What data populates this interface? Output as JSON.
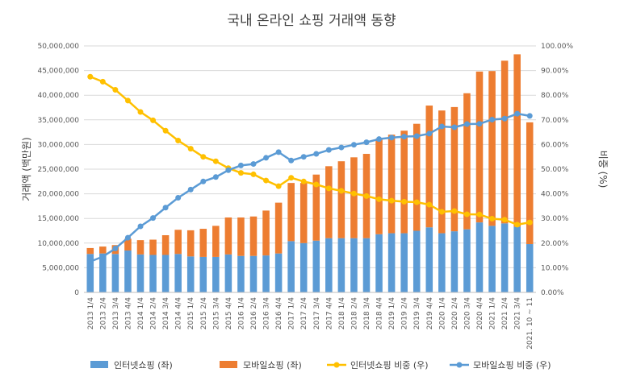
{
  "chart_data": {
    "type": "bar",
    "title": "국내 온라인 쇼핑 거래액 동향",
    "ylabel": "거래액 (백만원)",
    "y2label": "비중 (%)",
    "ylim": [
      0,
      50000000
    ],
    "y2lim": [
      0,
      100
    ],
    "stacked": true,
    "grid": true,
    "legend_position": "bottom",
    "categories": [
      "2013 1/4",
      "2013 2/4",
      "2013 3/4",
      "2013 4/4",
      "2014 1/4",
      "2014 2/4",
      "2014 3/4",
      "2014 4/4",
      "2015 1/4",
      "2015 2/4",
      "2015 3/4",
      "2015 4/4",
      "2016 1/4",
      "2016 2/4",
      "2016 3/4",
      "2016 4/4",
      "2017 1/4",
      "2017 2/4",
      "2017 3/4",
      "2017 4/4",
      "2018 1/4",
      "2018 2/4",
      "2018 3/4",
      "2018 4/4",
      "2019 1/4",
      "2019 2/4",
      "2019 3/4",
      "2019 4/4",
      "2020 1/4",
      "2020 2/4",
      "2020 3/4",
      "2020 4/4",
      "2021 1/4",
      "2021 2/4",
      "2021 3/4",
      "2021. 10 ~ 11"
    ],
    "y_ticks": [
      "0",
      "5,000,000",
      "10,000,000",
      "15,000,000",
      "20,000,000",
      "25,000,000",
      "30,000,000",
      "35,000,000",
      "40,000,000",
      "45,000,000",
      "50,000,000"
    ],
    "y2_ticks": [
      "0.00%",
      "10.00%",
      "20.00%",
      "30.00%",
      "40.00%",
      "50.00%",
      "60.00%",
      "70.00%",
      "80.00%",
      "90.00%",
      "100.00%"
    ],
    "series": [
      {
        "name": "인터넷쇼핑 (좌)",
        "kind": "bar",
        "axis": "left",
        "color": "#5B9BD5",
        "values": [
          7800000,
          7900000,
          7800000,
          8500000,
          7700000,
          7600000,
          7600000,
          7800000,
          7300000,
          7200000,
          7200000,
          7700000,
          7400000,
          7400000,
          7500000,
          7900000,
          10400000,
          10000000,
          10500000,
          11000000,
          11000000,
          11000000,
          11000000,
          11800000,
          12000000,
          12000000,
          12500000,
          13200000,
          12000000,
          12400000,
          12800000,
          14200000,
          13500000,
          14000000,
          13300000,
          9800000
        ]
      },
      {
        "name": "모바일쇼핑 (좌)",
        "kind": "bar",
        "axis": "left",
        "color": "#ED7D31",
        "values": [
          1200000,
          1400000,
          1800000,
          2400000,
          2900000,
          3100000,
          4000000,
          4900000,
          5300000,
          5700000,
          6300000,
          7500000,
          7800000,
          8000000,
          9100000,
          10300000,
          11800000,
          12200000,
          13400000,
          14600000,
          15600000,
          16400000,
          17100000,
          19400000,
          20000000,
          20800000,
          21700000,
          24700000,
          24900000,
          25200000,
          27600000,
          30600000,
          31400000,
          33000000,
          35000000,
          24700000
        ]
      },
      {
        "name": "인터넷쇼핑 비중 (우)",
        "kind": "line",
        "axis": "right",
        "color": "#FFC000",
        "values": [
          87.5,
          85.5,
          82.2,
          77.8,
          73.2,
          69.8,
          65.6,
          61.6,
          58.3,
          55.0,
          53.2,
          50.4,
          48.5,
          47.9,
          45.4,
          43.1,
          46.5,
          45.0,
          43.8,
          42.2,
          41.2,
          40.1,
          39.1,
          37.8,
          37.2,
          36.8,
          36.6,
          35.6,
          32.7,
          33.0,
          31.7,
          31.6,
          29.9,
          29.5,
          27.5,
          28.4
        ]
      },
      {
        "name": "모바일쇼핑 비중 (우)",
        "kind": "line",
        "axis": "right",
        "color": "#5B9BD5",
        "values": [
          12.5,
          14.5,
          17.8,
          22.2,
          26.8,
          30.2,
          34.4,
          38.4,
          41.7,
          45.0,
          46.8,
          49.6,
          51.5,
          52.1,
          54.6,
          56.9,
          53.5,
          55.0,
          56.2,
          57.8,
          58.8,
          59.9,
          60.9,
          62.2,
          62.8,
          63.2,
          63.4,
          64.4,
          67.3,
          67.0,
          68.3,
          68.4,
          70.1,
          70.5,
          72.5,
          71.6
        ]
      }
    ]
  }
}
